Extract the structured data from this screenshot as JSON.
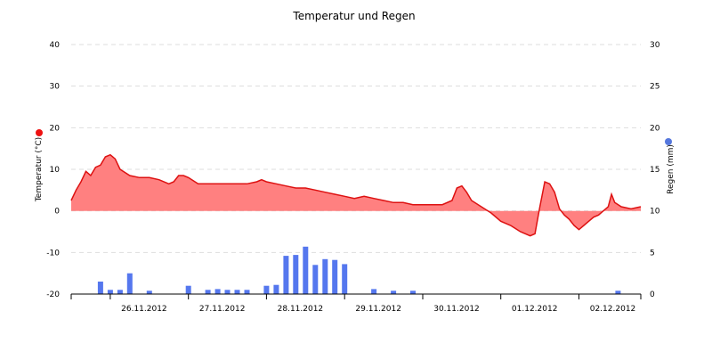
{
  "chart_data": {
    "type": "line",
    "title": "Temperatur und Regen",
    "y_left": {
      "label": "Temperatur (°C)",
      "min": -20,
      "max": 40,
      "ticks": [
        -20,
        -10,
        0,
        10,
        20,
        30,
        40
      ],
      "legend_color": "#ee1111"
    },
    "y_right": {
      "label": "Regen (mm)",
      "min": 0,
      "max": 30,
      "ticks": [
        0,
        5,
        10,
        15,
        20,
        25,
        30
      ],
      "legend_color": "#5577dd"
    },
    "x": {
      "start": "2012-11-25T12:00",
      "end": "2012-12-02T19:00",
      "tick_labels": [
        {
          "t": "2012-11-26T00:00",
          "label": "26.11.2012"
        },
        {
          "t": "2012-11-27T00:00",
          "label": "27.11.2012"
        },
        {
          "t": "2012-11-28T00:00",
          "label": "28.11.2012"
        },
        {
          "t": "2012-11-29T00:00",
          "label": "29.11.2012"
        },
        {
          "t": "2012-11-30T00:00",
          "label": "30.11.2012"
        },
        {
          "t": "2012-12-01T00:00",
          "label": "01.12.2012"
        },
        {
          "t": "2012-12-02T00:00",
          "label": "02.12.2012"
        }
      ]
    },
    "grid": true,
    "temperature": {
      "color": "#dd1111",
      "fill": "#ff8080",
      "points": [
        [
          "2012-11-25T12:00",
          2.5
        ],
        [
          "2012-11-25T13:30",
          5.0
        ],
        [
          "2012-11-25T15:00",
          7.0
        ],
        [
          "2012-11-25T16:30",
          9.5
        ],
        [
          "2012-11-25T18:00",
          8.5
        ],
        [
          "2012-11-25T19:30",
          10.5
        ],
        [
          "2012-11-25T21:00",
          11.0
        ],
        [
          "2012-11-25T22:30",
          13.0
        ],
        [
          "2012-11-26T00:00",
          13.5
        ],
        [
          "2012-11-26T01:30",
          12.5
        ],
        [
          "2012-11-26T03:00",
          10.0
        ],
        [
          "2012-11-26T06:00",
          8.5
        ],
        [
          "2012-11-26T09:00",
          8.0
        ],
        [
          "2012-11-26T12:00",
          8.0
        ],
        [
          "2012-11-26T15:00",
          7.5
        ],
        [
          "2012-11-26T18:00",
          6.5
        ],
        [
          "2012-11-26T19:30",
          7.0
        ],
        [
          "2012-11-26T21:00",
          8.5
        ],
        [
          "2012-11-26T22:30",
          8.5
        ],
        [
          "2012-11-27T00:00",
          8.0
        ],
        [
          "2012-11-27T03:00",
          6.5
        ],
        [
          "2012-11-27T06:00",
          6.5
        ],
        [
          "2012-11-27T09:00",
          6.5
        ],
        [
          "2012-11-27T12:00",
          6.5
        ],
        [
          "2012-11-27T15:00",
          6.5
        ],
        [
          "2012-11-27T18:00",
          6.5
        ],
        [
          "2012-11-27T21:00",
          7.0
        ],
        [
          "2012-11-27T22:30",
          7.5
        ],
        [
          "2012-11-28T00:00",
          7.0
        ],
        [
          "2012-11-28T03:00",
          6.5
        ],
        [
          "2012-11-28T06:00",
          6.0
        ],
        [
          "2012-11-28T09:00",
          5.5
        ],
        [
          "2012-11-28T12:00",
          5.5
        ],
        [
          "2012-11-28T15:00",
          5.0
        ],
        [
          "2012-11-28T18:00",
          4.5
        ],
        [
          "2012-11-28T21:00",
          4.0
        ],
        [
          "2012-11-29T00:00",
          3.5
        ],
        [
          "2012-11-29T03:00",
          3.0
        ],
        [
          "2012-11-29T06:00",
          3.5
        ],
        [
          "2012-11-29T09:00",
          3.0
        ],
        [
          "2012-11-29T12:00",
          2.5
        ],
        [
          "2012-11-29T15:00",
          2.0
        ],
        [
          "2012-11-29T18:00",
          2.0
        ],
        [
          "2012-11-29T21:00",
          1.5
        ],
        [
          "2012-11-30T00:00",
          1.5
        ],
        [
          "2012-11-30T03:00",
          1.5
        ],
        [
          "2012-11-30T06:00",
          1.5
        ],
        [
          "2012-11-30T09:00",
          2.5
        ],
        [
          "2012-11-30T10:30",
          5.5
        ],
        [
          "2012-11-30T12:00",
          6.0
        ],
        [
          "2012-11-30T13:30",
          4.5
        ],
        [
          "2012-11-30T15:00",
          2.5
        ],
        [
          "2012-11-30T18:00",
          1.0
        ],
        [
          "2012-11-30T21:00",
          -0.5
        ],
        [
          "2012-12-01T00:00",
          -2.5
        ],
        [
          "2012-12-01T03:00",
          -3.5
        ],
        [
          "2012-12-01T06:00",
          -5.0
        ],
        [
          "2012-12-01T09:00",
          -6.0
        ],
        [
          "2012-12-01T10:30",
          -5.5
        ],
        [
          "2012-12-01T12:00",
          1.0
        ],
        [
          "2012-12-01T13:30",
          7.0
        ],
        [
          "2012-12-01T15:00",
          6.5
        ],
        [
          "2012-12-01T16:30",
          4.5
        ],
        [
          "2012-12-01T18:00",
          0.5
        ],
        [
          "2012-12-01T19:30",
          -1.0
        ],
        [
          "2012-12-01T21:00",
          -2.0
        ],
        [
          "2012-12-01T22:30",
          -3.5
        ],
        [
          "2012-12-02T00:00",
          -4.5
        ],
        [
          "2012-12-02T01:30",
          -3.5
        ],
        [
          "2012-12-02T03:00",
          -2.5
        ],
        [
          "2012-12-02T04:30",
          -1.5
        ],
        [
          "2012-12-02T06:00",
          -1.0
        ],
        [
          "2012-12-02T07:30",
          0.0
        ],
        [
          "2012-12-02T09:00",
          1.0
        ],
        [
          "2012-12-02T10:00",
          4.0
        ],
        [
          "2012-12-02T11:00",
          2.0
        ],
        [
          "2012-12-02T13:00",
          1.0
        ],
        [
          "2012-12-02T16:00",
          0.5
        ],
        [
          "2012-12-02T19:00",
          1.0
        ]
      ]
    },
    "rain": {
      "color": "#5577ee",
      "bars": [
        [
          "2012-11-25T21:00",
          1.5
        ],
        [
          "2012-11-26T00:00",
          0.5
        ],
        [
          "2012-11-26T03:00",
          0.5
        ],
        [
          "2012-11-26T06:00",
          2.5
        ],
        [
          "2012-11-26T12:00",
          0.4
        ],
        [
          "2012-11-27T00:00",
          1.0
        ],
        [
          "2012-11-27T06:00",
          0.5
        ],
        [
          "2012-11-27T09:00",
          0.6
        ],
        [
          "2012-11-27T12:00",
          0.5
        ],
        [
          "2012-11-27T15:00",
          0.5
        ],
        [
          "2012-11-27T18:00",
          0.5
        ],
        [
          "2012-11-28T00:00",
          1.0
        ],
        [
          "2012-11-28T03:00",
          1.1
        ],
        [
          "2012-11-28T06:00",
          4.6
        ],
        [
          "2012-11-28T09:00",
          4.7
        ],
        [
          "2012-11-28T12:00",
          5.7
        ],
        [
          "2012-11-28T15:00",
          3.5
        ],
        [
          "2012-11-28T18:00",
          4.2
        ],
        [
          "2012-11-28T21:00",
          4.1
        ],
        [
          "2012-11-29T00:00",
          3.6
        ],
        [
          "2012-11-29T09:00",
          0.6
        ],
        [
          "2012-11-29T15:00",
          0.4
        ],
        [
          "2012-11-29T21:00",
          0.4
        ],
        [
          "2012-12-02T12:00",
          0.4
        ]
      ]
    }
  }
}
